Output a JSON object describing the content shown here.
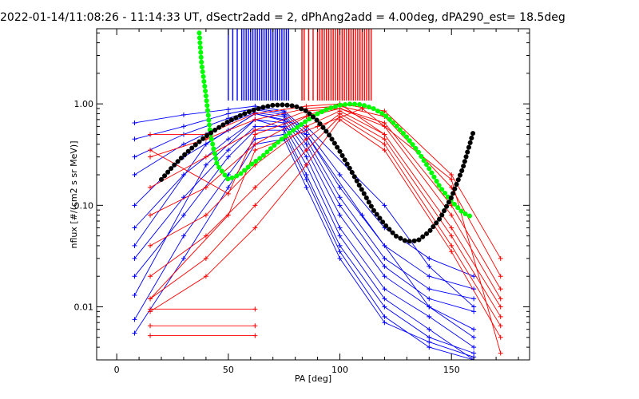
{
  "chart_data": {
    "type": "line",
    "title": "2022-01-14/11:08:26 - 11:14:33 UT, dSectr2add = 2, dPhAng2add = 4.00deg, dPA290_est=  18.5deg",
    "xlabel": "PA [deg]",
    "ylabel": "nflux [#/(cm2 s sr MeV)]",
    "xlim": [
      -9,
      185
    ],
    "ylim": [
      0.003,
      5.5
    ],
    "yscale": "log",
    "x_ticks": [
      0,
      50,
      100,
      150
    ],
    "x_tick_labels": [
      "0",
      "50",
      "100",
      "150"
    ],
    "y_ticks": [
      0.01,
      0.1,
      1.0
    ],
    "y_tick_labels": [
      "0.01",
      "0.10",
      "1.00"
    ],
    "grid": false,
    "legend": "none",
    "colors": {
      "blue": "#0000ff",
      "red": "#ff0000",
      "green": "#00ff00",
      "black": "#000000",
      "axes": "#000000"
    },
    "series": [
      {
        "color": "blue",
        "style": "line+cross",
        "lines": [
          {
            "x": [
              8,
              30,
              50,
              62,
              75,
              85,
              100,
              120,
              140,
              160
            ],
            "y": [
              0.65,
              0.78,
              0.88,
              0.95,
              0.85,
              0.55,
              0.2,
              0.06,
              0.03,
              0.02
            ]
          },
          {
            "x": [
              8,
              30,
              50,
              62,
              75,
              85,
              100,
              120,
              140,
              160
            ],
            "y": [
              0.45,
              0.6,
              0.8,
              0.9,
              0.82,
              0.5,
              0.15,
              0.04,
              0.02,
              0.015
            ]
          },
          {
            "x": [
              8,
              30,
              50,
              62,
              75,
              85,
              100,
              120,
              140,
              160
            ],
            "y": [
              0.3,
              0.5,
              0.72,
              0.88,
              0.78,
              0.45,
              0.12,
              0.03,
              0.015,
              0.012
            ]
          },
          {
            "x": [
              8,
              30,
              50,
              62,
              75,
              85,
              100,
              120,
              140,
              160
            ],
            "y": [
              0.2,
              0.4,
              0.65,
              0.82,
              0.75,
              0.4,
              0.1,
              0.025,
              0.012,
              0.009
            ]
          },
          {
            "x": [
              8,
              30,
              50,
              62,
              75,
              85,
              100,
              120,
              140,
              160
            ],
            "y": [
              0.1,
              0.3,
              0.55,
              0.8,
              0.7,
              0.35,
              0.08,
              0.02,
              0.01,
              0.006
            ]
          },
          {
            "x": [
              8,
              30,
              50,
              62,
              75,
              85,
              100,
              120,
              140,
              160
            ],
            "y": [
              0.06,
              0.2,
              0.45,
              0.7,
              0.65,
              0.3,
              0.06,
              0.015,
              0.008,
              0.004
            ]
          },
          {
            "x": [
              8,
              30,
              50,
              62,
              75,
              85,
              100,
              120,
              140,
              160
            ],
            "y": [
              0.03,
              0.12,
              0.35,
              0.6,
              0.6,
              0.25,
              0.05,
              0.012,
              0.006,
              0.003
            ]
          },
          {
            "x": [
              8,
              30,
              50,
              62,
              75,
              85,
              100,
              120,
              140,
              160
            ],
            "y": [
              0.02,
              0.08,
              0.3,
              0.55,
              0.55,
              0.2,
              0.04,
              0.01,
              0.005,
              0.0035
            ]
          },
          {
            "x": [
              8,
              30,
              50,
              62,
              75,
              85,
              100,
              120,
              140,
              160
            ],
            "y": [
              0.0075,
              0.05,
              0.2,
              0.45,
              0.5,
              0.18,
              0.035,
              0.008,
              0.004,
              0.003
            ]
          },
          {
            "x": [
              8,
              30,
              50,
              62,
              75,
              85,
              100,
              120,
              140,
              160
            ],
            "y": [
              0.0055,
              0.03,
              0.15,
              0.4,
              0.45,
              0.15,
              0.03,
              0.007,
              0.0045,
              0.0032
            ]
          },
          {
            "x": [
              8,
              40,
              62,
              85,
              110,
              140,
              160
            ],
            "y": [
              0.013,
              0.25,
              0.7,
              0.5,
              0.08,
              0.01,
              0.005
            ]
          },
          {
            "x": [
              8,
              40,
              62,
              85,
              120,
              140,
              160
            ],
            "y": [
              0.04,
              0.4,
              0.8,
              0.6,
              0.1,
              0.025,
              0.01
            ]
          }
        ]
      },
      {
        "color": "red",
        "style": "line+cross",
        "lines": [
          {
            "x": [
              15,
              40,
              62,
              85,
              100,
              120,
              150,
              172
            ],
            "y": [
              0.5,
              0.5,
              0.8,
              0.95,
              1.0,
              0.85,
              0.2,
              0.03
            ]
          },
          {
            "x": [
              15,
              40,
              62,
              85,
              100,
              120,
              150,
              172
            ],
            "y": [
              0.3,
              0.45,
              0.7,
              0.9,
              0.95,
              0.75,
              0.15,
              0.02
            ]
          },
          {
            "x": [
              15,
              40,
              62,
              85,
              100,
              120,
              150,
              172
            ],
            "y": [
              0.15,
              0.3,
              0.55,
              0.85,
              0.9,
              0.65,
              0.1,
              0.015
            ]
          },
          {
            "x": [
              15,
              40,
              62,
              85,
              100,
              120,
              150,
              172
            ],
            "y": [
              0.08,
              0.15,
              0.4,
              0.75,
              0.9,
              0.6,
              0.08,
              0.012
            ]
          },
          {
            "x": [
              15,
              40,
              62,
              85,
              100,
              120,
              150,
              172
            ],
            "y": [
              0.04,
              0.08,
              0.25,
              0.6,
              0.85,
              0.5,
              0.06,
              0.01
            ]
          },
          {
            "x": [
              15,
              40,
              62,
              85,
              100,
              120,
              150,
              172
            ],
            "y": [
              0.02,
              0.05,
              0.15,
              0.45,
              0.8,
              0.45,
              0.05,
              0.008
            ]
          },
          {
            "x": [
              15,
              40,
              62,
              85,
              100,
              120,
              150,
              172
            ],
            "y": [
              0.012,
              0.03,
              0.1,
              0.35,
              0.75,
              0.4,
              0.04,
              0.0065
            ]
          },
          {
            "x": [
              15,
              40,
              62,
              85,
              100,
              120,
              150,
              172
            ],
            "y": [
              0.009,
              0.02,
              0.06,
              0.25,
              0.7,
              0.35,
              0.035,
              0.005
            ]
          },
          {
            "x": [
              15,
              62
            ],
            "y": [
              0.0095,
              0.0095
            ]
          },
          {
            "x": [
              15,
              62
            ],
            "y": [
              0.0065,
              0.0065
            ]
          },
          {
            "x": [
              15,
              62
            ],
            "y": [
              0.0052,
              0.0052
            ]
          },
          {
            "x": [
              15,
              50,
              62,
              100,
              120
            ],
            "y": [
              0.35,
              0.13,
              0.5,
              1.0,
              0.5
            ]
          },
          {
            "x": [
              15,
              50,
              62,
              90,
              110,
              150,
              172
            ],
            "y": [
              0.012,
              0.08,
              0.35,
              0.6,
              0.9,
              0.18,
              0.0035
            ]
          }
        ]
      },
      {
        "color": "green",
        "style": "thick-dotted",
        "x": [
          37,
          38,
          40,
          42,
          45,
          50,
          55,
          60,
          65,
          70,
          75,
          80,
          85,
          90,
          95,
          100,
          105,
          110,
          115,
          120,
          125,
          130,
          135,
          140,
          145,
          150,
          155,
          160
        ],
        "y": [
          5.0,
          2.5,
          1.2,
          0.5,
          0.25,
          0.18,
          0.2,
          0.25,
          0.3,
          0.38,
          0.47,
          0.57,
          0.68,
          0.8,
          0.9,
          0.97,
          1.0,
          0.98,
          0.9,
          0.78,
          0.62,
          0.47,
          0.34,
          0.23,
          0.15,
          0.11,
          0.085,
          0.075
        ]
      },
      {
        "color": "black",
        "style": "thick-dotted",
        "x": [
          20,
          25,
          30,
          35,
          40,
          45,
          50,
          55,
          60,
          65,
          70,
          75,
          80,
          85,
          90,
          95,
          100,
          105,
          110,
          115,
          120,
          125,
          130,
          135,
          140,
          145,
          150,
          155,
          160
        ],
        "y": [
          0.18,
          0.24,
          0.31,
          0.39,
          0.48,
          0.57,
          0.67,
          0.76,
          0.85,
          0.92,
          0.97,
          0.98,
          0.95,
          0.85,
          0.68,
          0.5,
          0.34,
          0.22,
          0.14,
          0.09,
          0.065,
          0.05,
          0.044,
          0.045,
          0.055,
          0.075,
          0.12,
          0.23,
          0.55
        ]
      }
    ],
    "spikes": [
      {
        "color": "blue",
        "x": [
          50,
          52,
          54,
          56,
          57,
          58,
          59,
          60,
          61,
          62,
          63,
          64,
          65,
          66,
          67,
          68,
          69,
          70,
          71,
          72,
          73,
          74,
          75,
          76,
          77
        ]
      },
      {
        "color": "red",
        "x": [
          83,
          84,
          86,
          88,
          90,
          91,
          92,
          93,
          94,
          95,
          96,
          97,
          98,
          99,
          100,
          101,
          102,
          103,
          104,
          105,
          106,
          107,
          108,
          109,
          110,
          111,
          112,
          113,
          114
        ]
      }
    ]
  }
}
